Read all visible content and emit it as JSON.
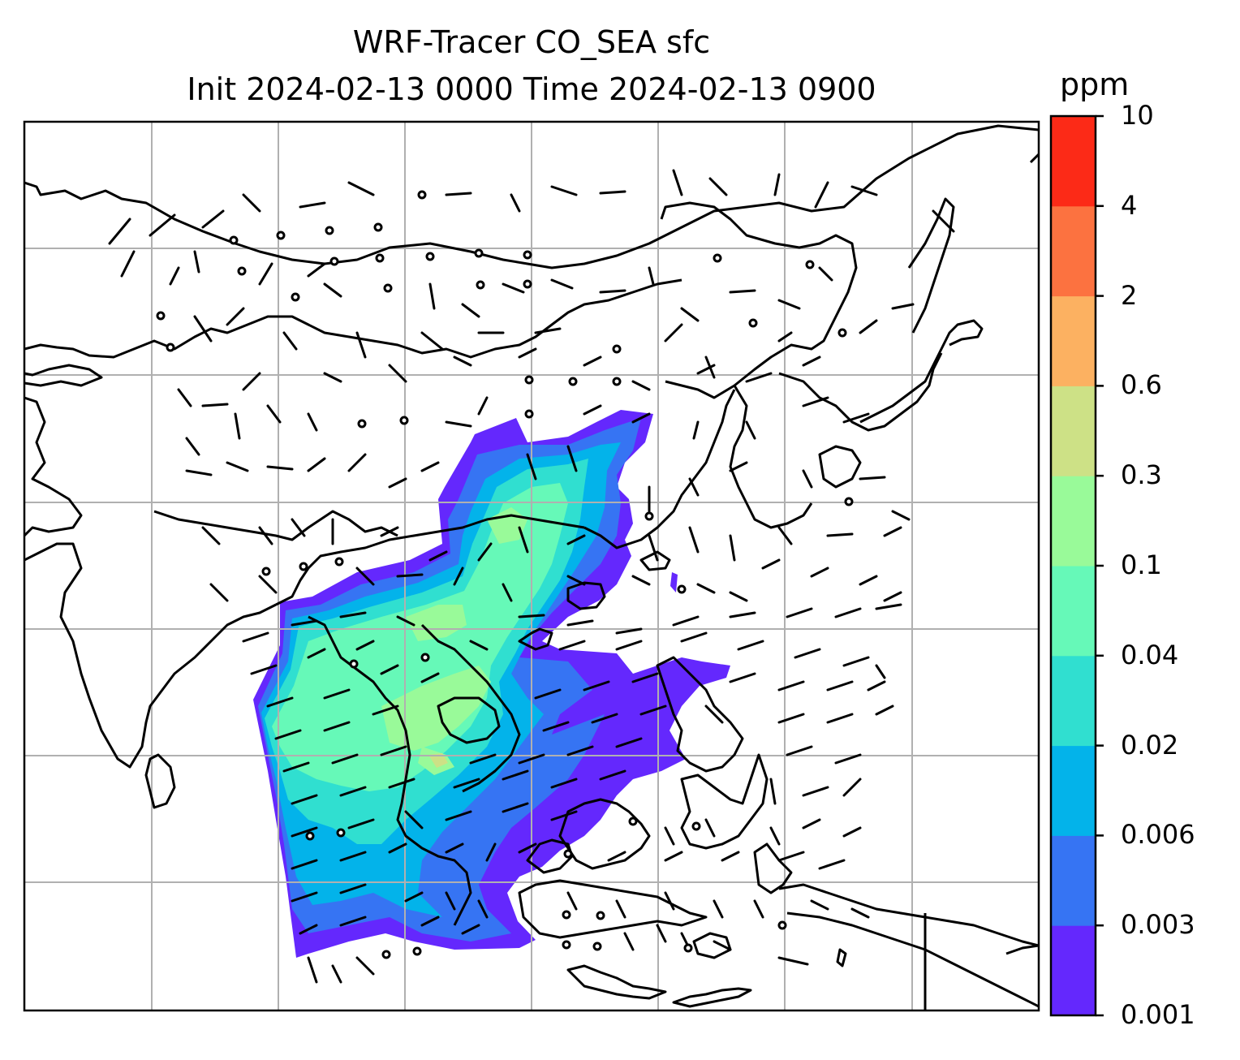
{
  "title": {
    "line1": "WRF-Tracer CO_SEA sfc",
    "line2": "Init 2024-02-13 0000 Time 2024-02-13 0900"
  },
  "colorbar": {
    "unit": "ppm",
    "levels": [
      "0.001",
      "0.003",
      "0.006",
      "0.02",
      "0.04",
      "0.1",
      "0.3",
      "0.6",
      "2",
      "4",
      "10"
    ],
    "colors": [
      "#6428fd",
      "#3674f3",
      "#03b3ea",
      "#30dfd0",
      "#66f9b8",
      "#99fa99",
      "#cde186",
      "#fcb161",
      "#fc7240",
      "#fc2a17"
    ]
  },
  "map": {
    "projection": "lat-lon",
    "region": "South and East Asia",
    "gridlines": true,
    "coastline_color": "#000000",
    "wind_barbs": true
  }
}
